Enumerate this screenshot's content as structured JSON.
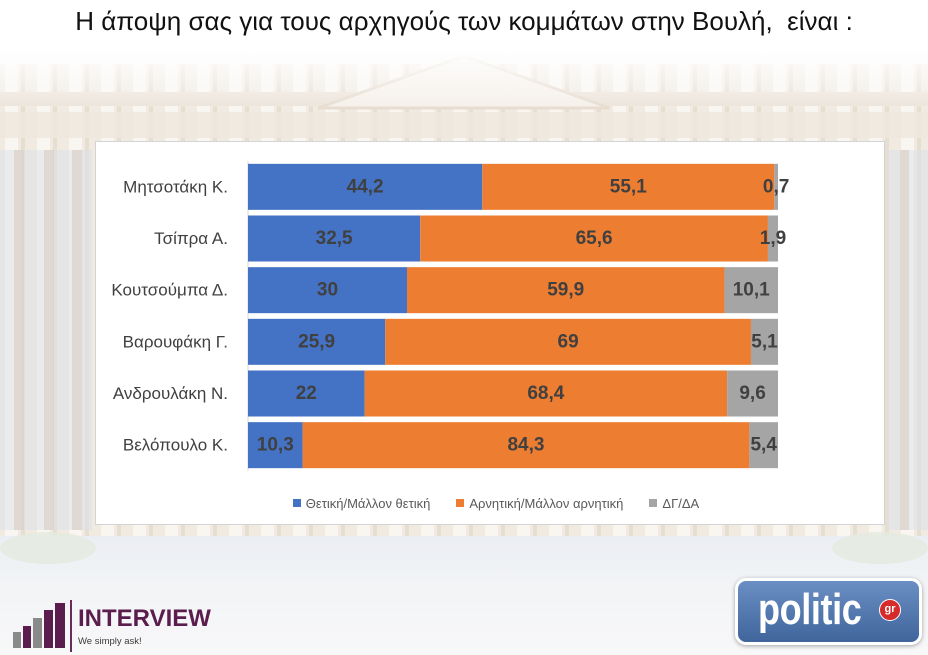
{
  "slide": {
    "title": "Η άποψη σας για τους αρχηγούς των κομμάτων στην Βουλή,  είναι :"
  },
  "chart_data": {
    "type": "bar",
    "orientation": "horizontal",
    "stacked": true,
    "xlim": [
      0,
      100
    ],
    "grid": false,
    "legend": "bottom",
    "categories": [
      "Μητσοτάκη Κ.",
      "Τσίπρα Α.",
      "Κουτσούμπα Δ.",
      "Βαρουφάκη Γ.",
      "Ανδρουλάκη Ν.",
      "Βελόπουλο Κ."
    ],
    "series": [
      {
        "name": "Θετική/Μάλλον θετική",
        "color": "#4472C4",
        "values": [
          44.2,
          32.5,
          30,
          25.9,
          22,
          10.3
        ]
      },
      {
        "name": "Αρνητική/Μάλλον αρνητική",
        "color": "#ED7D31",
        "values": [
          55.1,
          65.6,
          59.9,
          69,
          68.4,
          84.3
        ]
      },
      {
        "name": "ΔΓ/ΔΑ",
        "color": "#A5A5A5",
        "values": [
          0.7,
          1.9,
          10.1,
          5.1,
          9.6,
          5.4
        ]
      }
    ]
  },
  "logos": {
    "interview": {
      "wordmark": "INTERVIEW",
      "tagline": "We simply ask!",
      "icon": "bar-steps-icon",
      "color": "#5B1D4E"
    },
    "politic": {
      "wordmark": "politic",
      "badge": "gr",
      "color": "#4A76B6",
      "badge_color": "#D62B2B"
    }
  }
}
